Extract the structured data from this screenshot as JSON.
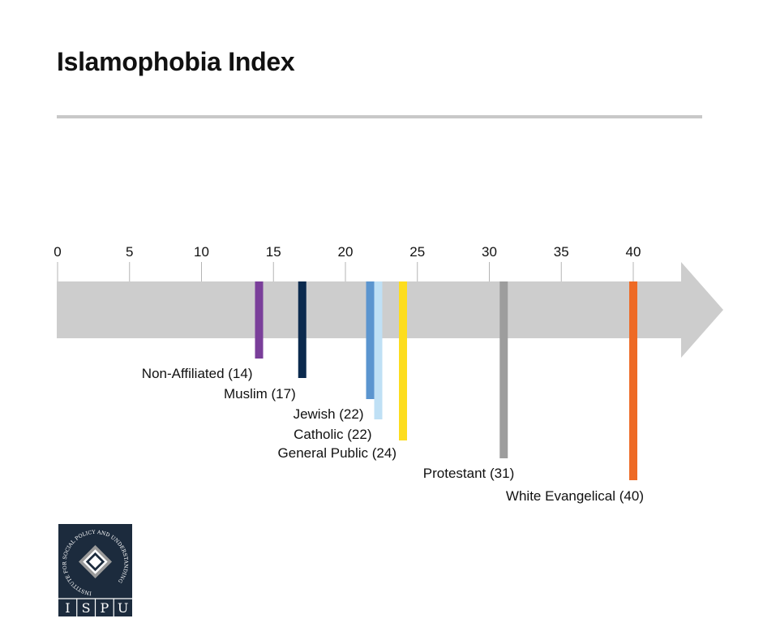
{
  "page": {
    "title": "Islamophobia Index"
  },
  "chart_data": {
    "type": "bar",
    "title": "Islamophobia Index",
    "xlim": [
      0,
      45
    ],
    "ticks": [
      0,
      5,
      10,
      15,
      20,
      25,
      30,
      35,
      40
    ],
    "colors": {
      "arrow": "#cdcdcd",
      "tick": "#b4b4b4",
      "label": "#111111"
    },
    "groups": [
      {
        "name": "Non-Affiliated",
        "value": 14,
        "label": "Non-Affiliated (14)",
        "color": "#7a3f9a"
      },
      {
        "name": "Muslim",
        "value": 17,
        "label": "Muslim (17)",
        "color": "#0b2a4e"
      },
      {
        "name": "Jewish",
        "value": 22,
        "label": "Jewish (22)",
        "color": "#5b95cf"
      },
      {
        "name": "Catholic",
        "value": 22,
        "label": "Catholic (22)",
        "color": "#bfe0f5"
      },
      {
        "name": "General Public",
        "value": 24,
        "label": "General Public (24)",
        "color": "#fddd1e"
      },
      {
        "name": "Protestant",
        "value": 31,
        "label": "Protestant (31)",
        "color": "#9d9d9d"
      },
      {
        "name": "White Evangelical",
        "value": 40,
        "label": "White Evangelical (40)",
        "color": "#ee6a25"
      }
    ]
  },
  "logo": {
    "ring_text": "INSTITUTE FOR SOCIAL POLICY AND UNDERSTANDING",
    "letters": [
      "I",
      "S",
      "P",
      "U"
    ],
    "colors": {
      "bg": "#1c2b3d",
      "diamond_outer": "#9a9a9a",
      "diamond_inner": "#ffffff"
    }
  }
}
